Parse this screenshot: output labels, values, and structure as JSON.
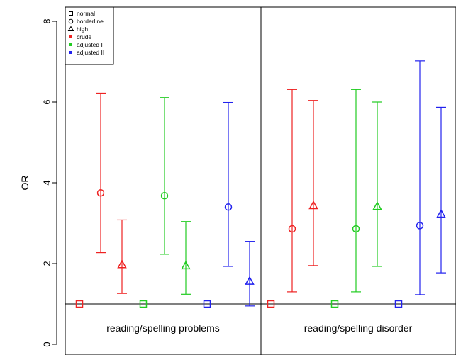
{
  "chart_data": {
    "type": "scatter",
    "ylabel": "OR",
    "yticks": [
      0,
      2,
      4,
      6,
      8
    ],
    "ylim": [
      -0.3,
      8.4
    ],
    "reference_line": 1,
    "panels": [
      {
        "label": "reading/spelling problems",
        "groups": [
          {
            "model": "crude",
            "color": "#ee2222",
            "points": [
              {
                "level": "normal",
                "or": 1.0,
                "low": null,
                "high": null
              },
              {
                "level": "borderline",
                "or": 3.75,
                "low": 2.27,
                "high": 6.22
              },
              {
                "level": "high",
                "or": 1.97,
                "low": 1.26,
                "high": 3.08
              }
            ]
          },
          {
            "model": "adjusted I",
            "color": "#22cc22",
            "points": [
              {
                "level": "normal",
                "or": 1.0,
                "low": null,
                "high": null
              },
              {
                "level": "borderline",
                "or": 3.68,
                "low": 2.23,
                "high": 6.11
              },
              {
                "level": "high",
                "or": 1.94,
                "low": 1.24,
                "high": 3.04
              }
            ]
          },
          {
            "model": "adjusted II",
            "color": "#2222ee",
            "points": [
              {
                "level": "normal",
                "or": 1.0,
                "low": null,
                "high": null
              },
              {
                "level": "borderline",
                "or": 3.4,
                "low": 1.93,
                "high": 5.99
              },
              {
                "level": "high",
                "or": 1.56,
                "low": 0.95,
                "high": 2.55
              }
            ]
          }
        ]
      },
      {
        "label": "reading/spelling disorder",
        "groups": [
          {
            "model": "crude",
            "color": "#ee2222",
            "points": [
              {
                "level": "normal",
                "or": 1.0,
                "low": null,
                "high": null
              },
              {
                "level": "borderline",
                "or": 2.86,
                "low": 1.3,
                "high": 6.31
              },
              {
                "level": "high",
                "or": 3.43,
                "low": 1.95,
                "high": 6.04
              }
            ]
          },
          {
            "model": "adjusted I",
            "color": "#22cc22",
            "points": [
              {
                "level": "normal",
                "or": 1.0,
                "low": null,
                "high": null
              },
              {
                "level": "borderline",
                "or": 2.86,
                "low": 1.3,
                "high": 6.31
              },
              {
                "level": "high",
                "or": 3.41,
                "low": 1.93,
                "high": 6.0
              }
            ]
          },
          {
            "model": "adjusted II",
            "color": "#2222ee",
            "points": [
              {
                "level": "normal",
                "or": 1.0,
                "low": null,
                "high": null
              },
              {
                "level": "borderline",
                "or": 2.94,
                "low": 1.23,
                "high": 7.02
              },
              {
                "level": "high",
                "or": 3.22,
                "low": 1.77,
                "high": 5.87
              }
            ]
          }
        ]
      }
    ],
    "legend": {
      "position": "top-left",
      "entries": [
        {
          "label": "normal",
          "marker": "square",
          "color": "#000000"
        },
        {
          "label": "borderline",
          "marker": "circle",
          "color": "#000000"
        },
        {
          "label": "high",
          "marker": "triangle",
          "color": "#000000"
        },
        {
          "label": "crude",
          "marker": "dot",
          "color": "#ee2222"
        },
        {
          "label": "adjusted I",
          "marker": "dot",
          "color": "#22cc22"
        },
        {
          "label": "adjusted II",
          "marker": "dot",
          "color": "#2222ee"
        }
      ]
    }
  }
}
